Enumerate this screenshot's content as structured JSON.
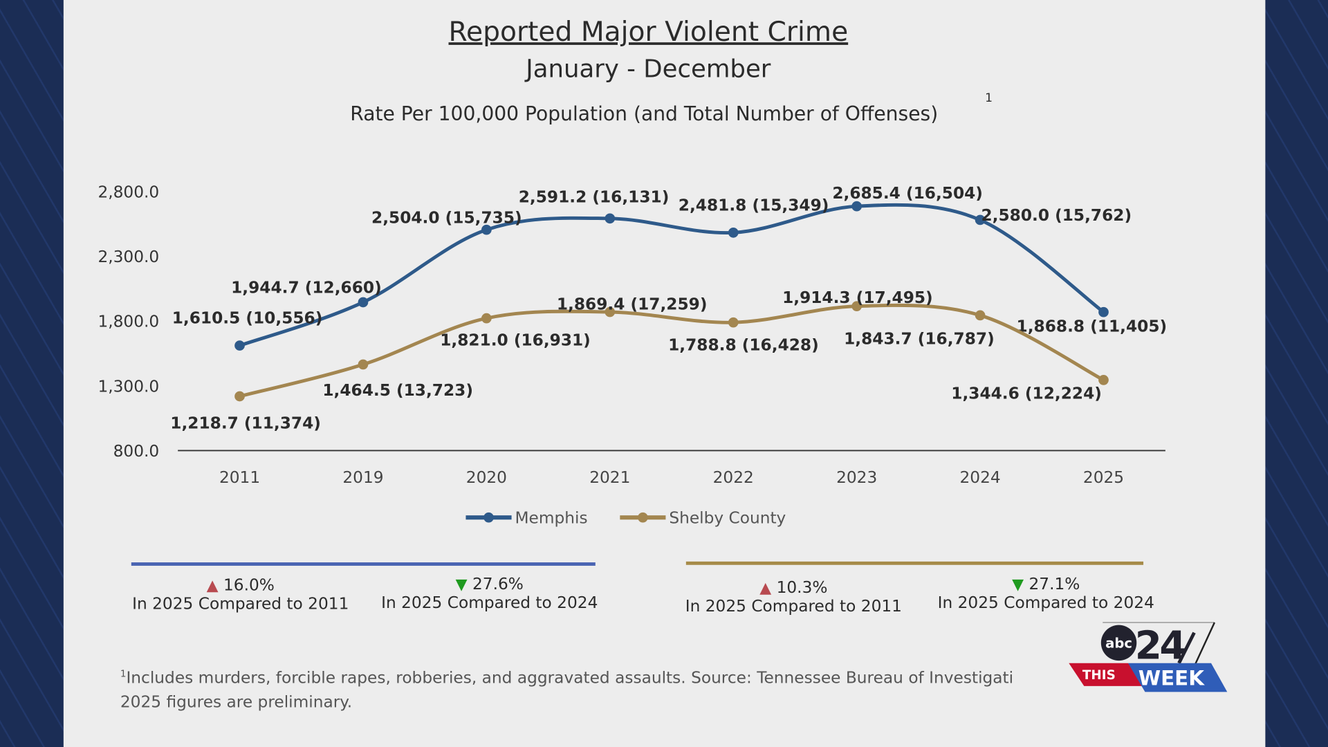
{
  "chart_data": {
    "type": "line",
    "title": "Reported Major Violent Crime",
    "subtitle": "January - December",
    "ylabel_text": "Rate Per 100,000 Population (and Total Number of Offenses)",
    "footnote_marker": "1",
    "categories": [
      "2011",
      "2019",
      "2020",
      "2021",
      "2022",
      "2023",
      "2024",
      "2025"
    ],
    "ylim": [
      800,
      2800
    ],
    "yticks": [
      "800.0",
      "1,300.0",
      "1,800.0",
      "2,300.0",
      "2,800.0"
    ],
    "ytick_values": [
      800,
      1300,
      1800,
      2300,
      2800
    ],
    "grid": false,
    "legend_position": "bottom",
    "series": [
      {
        "name": "Memphis",
        "color": "#2e5a8a",
        "values": [
          1610.5,
          1944.7,
          2504.0,
          2591.2,
          2481.8,
          2685.4,
          2580.0,
          1868.8
        ],
        "labels": [
          "1,610.5 (10,556)",
          "1,944.7 (12,660)",
          "2,504.0 (15,735)",
          "2,591.2 (16,131)",
          "2,481.8 (15,349)",
          "2,685.4 (16,504)",
          "2,580.0 (15,762)",
          "1,868.8 (11,405)"
        ],
        "offenses": [
          10556,
          12660,
          15735,
          16131,
          15349,
          16504,
          15762,
          11405
        ]
      },
      {
        "name": "Shelby County",
        "color": "#a38650",
        "values": [
          1218.7,
          1464.5,
          1821.0,
          1869.4,
          1788.8,
          1914.3,
          1843.7,
          1344.6
        ],
        "labels": [
          "1,218.7 (11,374)",
          "1,464.5 (13,723)",
          "1,821.0 (16,931)",
          "1,869.4 (17,259)",
          "1,788.8 (16,428)",
          "1,914.3 (17,495)",
          "1,843.7 (16,787)",
          "1,344.6 (12,224)"
        ],
        "offenses": [
          11374,
          13723,
          16931,
          17259,
          16428,
          17495,
          16787,
          12224
        ]
      }
    ]
  },
  "stats": {
    "memphis_color": "#4a64b2",
    "shelby_color": "#a68b48",
    "items": [
      {
        "direction": "up",
        "pct": "16.0%",
        "text": "In 2025 Compared to 2011"
      },
      {
        "direction": "down",
        "pct": "27.6%",
        "text": "In 2025 Compared to 2024"
      },
      {
        "direction": "up",
        "pct": "10.3%",
        "text": "In 2025 Compared to 2011"
      },
      {
        "direction": "down",
        "pct": "27.1%",
        "text": "In 2025 Compared to 2024"
      }
    ]
  },
  "footnote": {
    "marker": "1",
    "line1": "Includes murders, forcible rapes, robberies, and aggravated assaults. Source: Tennessee Bureau of Investigati",
    "line2": "2025 figures are preliminary."
  },
  "logo": {
    "abc": "abc",
    "num": "24",
    "this": "THIS",
    "week": "WEEK"
  }
}
